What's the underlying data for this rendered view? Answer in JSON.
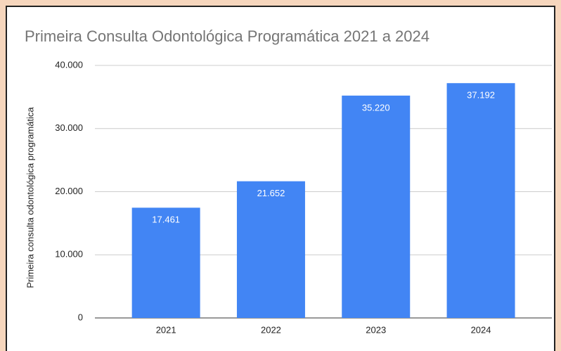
{
  "chart_data": {
    "type": "bar",
    "title": "Primeira Consulta Odontológica Programática 2021 a 2024",
    "y_label": "Primeira consulta odontológica programática",
    "categories": [
      "2021",
      "2022",
      "2023",
      "2024"
    ],
    "values": [
      17461,
      21652,
      35220,
      37192
    ],
    "value_labels": [
      "17.461",
      "21.652",
      "35.220",
      "37.192"
    ],
    "color": "#4285f4",
    "ylim": [
      0,
      40000
    ],
    "yticks": [
      0,
      {
        "value": 10000,
        "label": "10.000"
      },
      {
        "value": 20000,
        "label": "20.000"
      },
      {
        "value": 30000,
        "label": "30.000"
      },
      {
        "value": 40000,
        "label": "40.000"
      }
    ],
    "grid": true
  }
}
